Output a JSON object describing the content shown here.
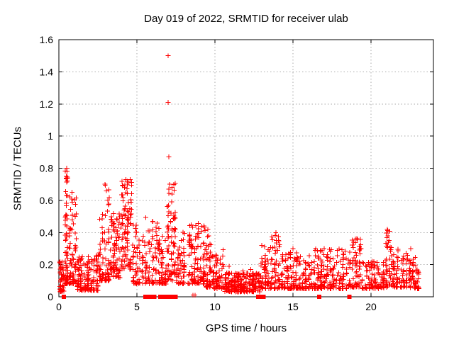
{
  "title": "Day 019 of 2022, SRMTID for receiver ulab",
  "chart_data": {
    "type": "scatter",
    "title": "Day 019 of 2022, SRMTID for receiver ulab",
    "xlabel": "GPS time / hours",
    "ylabel": "SRMTID / TECUs",
    "xlim": [
      0,
      24
    ],
    "ylim": [
      0,
      1.6
    ],
    "x_ticks": [
      0,
      5,
      10,
      15,
      20
    ],
    "x_tick_labels": [
      "0",
      "5",
      "10",
      "15",
      "20"
    ],
    "y_ticks": [
      0,
      0.2,
      0.4,
      0.6,
      0.8,
      1,
      1.2,
      1.4,
      1.6
    ],
    "y_tick_labels": [
      "0",
      "0.2",
      "0.4",
      "0.6",
      "0.8",
      "1",
      "1.2",
      "1.4",
      "1.6"
    ],
    "grid": true,
    "legend": "none",
    "marker": {
      "shape": "plus",
      "size": 7
    },
    "zero_marker": {
      "shape": "filled-square",
      "size": 6
    },
    "colors": {
      "marker": "#ff0000",
      "grid": "#aaaaaa",
      "border": "#000000",
      "text": "#000000"
    },
    "outliers": [
      [
        7.0,
        1.5
      ],
      [
        7.0,
        1.21
      ],
      [
        7.05,
        0.87
      ]
    ],
    "feature_points": [
      [
        0.5,
        0.8
      ],
      [
        0.52,
        0.78
      ],
      [
        0.47,
        0.75
      ],
      [
        0.55,
        0.72
      ],
      [
        0.85,
        0.65
      ],
      [
        2.95,
        0.7
      ],
      [
        3.05,
        0.66
      ],
      [
        4.3,
        0.73
      ],
      [
        4.45,
        0.71
      ],
      [
        4.2,
        0.68
      ],
      [
        7.1,
        0.7
      ],
      [
        7.05,
        0.67
      ],
      [
        7.25,
        0.64
      ],
      [
        9.55,
        0.42
      ],
      [
        9.6,
        0.38
      ],
      [
        13.9,
        0.4
      ],
      [
        15.0,
        0.3
      ],
      [
        19.0,
        0.36
      ],
      [
        21.05,
        0.42
      ],
      [
        21.08,
        0.38
      ],
      [
        21.12,
        0.34
      ],
      [
        22.55,
        0.3
      ],
      [
        10.9,
        0.19
      ],
      [
        11.8,
        0.16
      ],
      [
        12.3,
        0.17
      ],
      [
        8.6,
        0.01
      ],
      [
        8.72,
        0.01
      ]
    ],
    "zero_square_times": [
      0.32,
      5.55,
      5.62,
      5.78,
      5.92,
      6.05,
      6.12,
      6.5,
      6.57,
      6.64,
      6.71,
      6.78,
      6.85,
      6.92,
      6.99,
      7.06,
      7.13,
      7.2,
      7.27,
      7.34,
      7.41,
      7.48,
      12.78,
      12.85,
      13.05,
      13.12,
      16.68,
      18.62
    ],
    "clusters": [
      {
        "t": [
          0.03,
          0.35
        ],
        "n": 45,
        "v": [
          0.03,
          0.22
        ],
        "bias": 1.5
      },
      {
        "t": [
          0.35,
          0.62
        ],
        "n": 60,
        "v": [
          0.08,
          0.8
        ],
        "bias": 2.3
      },
      {
        "t": [
          0.62,
          1.15
        ],
        "n": 70,
        "v": [
          0.08,
          0.66
        ],
        "bias": 2.0
      },
      {
        "t": [
          1.15,
          2.55
        ],
        "n": 150,
        "v": [
          0.04,
          0.26
        ],
        "bias": 2.0
      },
      {
        "t": [
          2.55,
          3.25
        ],
        "n": 75,
        "v": [
          0.1,
          0.72
        ],
        "bias": 2.1
      },
      {
        "t": [
          3.25,
          3.95
        ],
        "n": 80,
        "v": [
          0.12,
          0.52
        ],
        "bias": 1.7
      },
      {
        "t": [
          3.95,
          4.7
        ],
        "n": 95,
        "v": [
          0.17,
          0.73
        ],
        "bias": 1.25
      },
      {
        "t": [
          4.7,
          5.45
        ],
        "n": 60,
        "v": [
          0.08,
          0.45
        ],
        "bias": 1.7
      },
      {
        "t": [
          5.45,
          6.35
        ],
        "n": 70,
        "v": [
          0.08,
          0.5
        ],
        "bias": 1.9
      },
      {
        "t": [
          6.35,
          6.9
        ],
        "n": 55,
        "v": [
          0.08,
          0.45
        ],
        "bias": 1.9
      },
      {
        "t": [
          6.9,
          7.5
        ],
        "n": 75,
        "v": [
          0.1,
          0.72
        ],
        "bias": 1.6
      },
      {
        "t": [
          7.5,
          8.1
        ],
        "n": 55,
        "v": [
          0.08,
          0.42
        ],
        "bias": 1.9
      },
      {
        "t": [
          8.25,
          9.4
        ],
        "n": 110,
        "v": [
          0.08,
          0.46
        ],
        "bias": 1.8
      },
      {
        "t": [
          9.4,
          9.8
        ],
        "n": 45,
        "v": [
          0.06,
          0.42
        ],
        "bias": 1.9
      },
      {
        "t": [
          9.8,
          10.6
        ],
        "n": 70,
        "v": [
          0.05,
          0.3
        ],
        "bias": 2.0
      },
      {
        "t": [
          10.6,
          12.9
        ],
        "n": 230,
        "v": [
          0.03,
          0.15
        ],
        "bias": 1.4
      },
      {
        "t": [
          12.9,
          13.3
        ],
        "n": 40,
        "v": [
          0.05,
          0.35
        ],
        "bias": 2.0
      },
      {
        "t": [
          13.3,
          14.2
        ],
        "n": 70,
        "v": [
          0.05,
          0.4
        ],
        "bias": 2.1
      },
      {
        "t": [
          14.2,
          16.3
        ],
        "n": 160,
        "v": [
          0.05,
          0.28
        ],
        "bias": 2.1
      },
      {
        "t": [
          16.3,
          18.5
        ],
        "n": 170,
        "v": [
          0.05,
          0.3
        ],
        "bias": 2.0
      },
      {
        "t": [
          18.5,
          19.4
        ],
        "n": 70,
        "v": [
          0.06,
          0.37
        ],
        "bias": 1.9
      },
      {
        "t": [
          19.4,
          20.9
        ],
        "n": 110,
        "v": [
          0.05,
          0.22
        ],
        "bias": 1.8
      },
      {
        "t": [
          20.9,
          21.35
        ],
        "n": 40,
        "v": [
          0.06,
          0.43
        ],
        "bias": 1.8
      },
      {
        "t": [
          21.35,
          22.4
        ],
        "n": 80,
        "v": [
          0.06,
          0.3
        ],
        "bias": 1.9
      },
      {
        "t": [
          22.4,
          23.1
        ],
        "n": 60,
        "v": [
          0.05,
          0.25
        ],
        "bias": 1.8
      }
    ],
    "seed": 20220119
  }
}
